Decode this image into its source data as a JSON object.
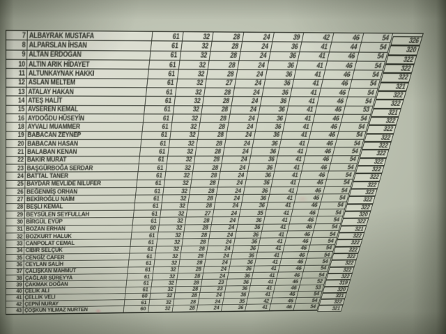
{
  "table": {
    "rows": [
      {
        "no": "7",
        "name": "ALBAYRAK MUSTAFA",
        "scores": [
          "61",
          "32",
          "28",
          "24",
          "39",
          "42",
          "46",
          "54"
        ],
        "total": "326"
      },
      {
        "no": "8",
        "name": "ALPARSLAN İHSAN",
        "scores": [
          "61",
          "32",
          "28",
          "24",
          "36",
          "41",
          "44",
          "54"
        ],
        "total": "320"
      },
      {
        "no": "9",
        "name": "ALTAN ERDOĞAN",
        "scores": [
          "61",
          "32",
          "28",
          "24",
          "36",
          "41",
          "46",
          "54"
        ],
        "total": "322"
      },
      {
        "no": "10",
        "name": "ALTIN ARIK HİDAYET",
        "scores": [
          "61",
          "32",
          "28",
          "24",
          "36",
          "41",
          "46",
          "54"
        ],
        "total": "322"
      },
      {
        "no": "11",
        "name": "ALTUNKAYNAK HAKKI",
        "scores": [
          "61",
          "32",
          "28",
          "24",
          "36",
          "41",
          "46",
          "54"
        ],
        "total": "322"
      },
      {
        "no": "12",
        "name": "ASLAN MELTEM",
        "scores": [
          "61",
          "32",
          "27",
          "24",
          "36",
          "41",
          "46",
          "54"
        ],
        "total": "321"
      },
      {
        "no": "13",
        "name": "ATALAY HAKAN",
        "scores": [
          "61",
          "32",
          "28",
          "24",
          "36",
          "41",
          "46",
          "54"
        ],
        "total": "322"
      },
      {
        "no": "14",
        "name": "ATEŞ HALİT",
        "scores": [
          "61",
          "32",
          "28",
          "24",
          "36",
          "41",
          "46",
          "54"
        ],
        "total": "322"
      },
      {
        "no": "15",
        "name": "AVSEREN KEMAL",
        "scores": [
          "61",
          "32",
          "28",
          "24",
          "36",
          "41",
          "46",
          "53"
        ],
        "total": "321"
      },
      {
        "no": "16",
        "name": "AYDOĞDU HÜSEYİN",
        "scores": [
          "61",
          "32",
          "28",
          "24",
          "36",
          "41",
          "46",
          "54"
        ],
        "total": "322"
      },
      {
        "no": "18",
        "name": "AYVALI MUAMMER",
        "scores": [
          "61",
          "32",
          "28",
          "24",
          "36",
          "41",
          "46",
          "54"
        ],
        "total": "322"
      },
      {
        "no": "19",
        "name": "BABACAN ZEYNEP",
        "scores": [
          "61",
          "32",
          "28",
          "24",
          "36",
          "41",
          "46",
          "54"
        ],
        "total": "322"
      },
      {
        "no": "20",
        "name": "BABACAN HASAN",
        "scores": [
          "61",
          "32",
          "28",
          "24",
          "36",
          "41",
          "46",
          "54"
        ],
        "total": "322"
      },
      {
        "no": "21",
        "name": "BALABAN KENAN",
        "scores": [
          "61",
          "32",
          "28",
          "24",
          "36",
          "41",
          "46",
          "54"
        ],
        "total": "322"
      },
      {
        "no": "22",
        "name": "BAKIR MURAT",
        "scores": [
          "61",
          "32",
          "28",
          "24",
          "36",
          "41",
          "46",
          "54"
        ],
        "total": "322"
      },
      {
        "no": "23",
        "name": "BAŞGÜRBOĞA SERDAR",
        "scores": [
          "61",
          "32",
          "28",
          "24",
          "36",
          "41",
          "46",
          "54"
        ],
        "total": "322"
      },
      {
        "no": "24",
        "name": "BATTAL TANER",
        "scores": [
          "61",
          "32",
          "28",
          "24",
          "36",
          "41",
          "46",
          "54"
        ],
        "total": "322"
      },
      {
        "no": "25",
        "name": "BAYDAR MEVLİDE NİLÜFER",
        "scores": [
          "61",
          "32",
          "28",
          "24",
          "36",
          "41",
          "46",
          "54"
        ],
        "total": "322"
      },
      {
        "no": "26",
        "name": "BEĞENMİŞ ORHAN",
        "scores": [
          "61",
          "32",
          "28",
          "24",
          "36",
          "41",
          "46",
          "54"
        ],
        "total": "322"
      },
      {
        "no": "27",
        "name": "BEKİROĞLU NAİM",
        "scores": [
          "61",
          "32",
          "28",
          "24",
          "36",
          "41",
          "46",
          "54"
        ],
        "total": "322"
      },
      {
        "no": "28",
        "name": "BEŞLİ KEMAL",
        "scores": [
          "61",
          "32",
          "28",
          "24",
          "36",
          "41",
          "46",
          "54"
        ],
        "total": "322"
      },
      {
        "no": "29",
        "name": "BEYSÜLEN SEYFULLAH",
        "scores": [
          "61",
          "32",
          "27",
          "24",
          "35",
          "41",
          "46",
          "54"
        ],
        "total": "320"
      },
      {
        "no": "30",
        "name": "BİRGÜL EYÜP",
        "scores": [
          "61",
          "32",
          "28",
          "24",
          "36",
          "41",
          "46",
          "54"
        ],
        "total": "322"
      },
      {
        "no": "31",
        "name": "BOZAN ERHAN",
        "scores": [
          "60",
          "32",
          "28",
          "24",
          "36",
          "41",
          "46",
          "54"
        ],
        "total": "321"
      },
      {
        "no": "32",
        "name": "BOZKURT HALUK",
        "scores": [
          "61",
          "32",
          "28",
          "24",
          "36",
          "41",
          "46",
          "54"
        ],
        "total": "322"
      },
      {
        "no": "33",
        "name": "CANPOLAT CEMAL",
        "scores": [
          "61",
          "32",
          "28",
          "24",
          "36",
          "41",
          "46",
          "54"
        ],
        "total": "322"
      },
      {
        "no": "34",
        "name": "CİBİR SELÇUK",
        "scores": [
          "61",
          "32",
          "28",
          "24",
          "36",
          "41",
          "46",
          "54"
        ],
        "total": "322"
      },
      {
        "no": "35",
        "name": "CENGİZ CAFER",
        "scores": [
          "61",
          "32",
          "28",
          "24",
          "36",
          "41",
          "46",
          "54"
        ],
        "total": "322"
      },
      {
        "no": "36",
        "name": "CEYLAN SALİH",
        "scores": [
          "61",
          "32",
          "28",
          "24",
          "36",
          "41",
          "46",
          "54"
        ],
        "total": "322"
      },
      {
        "no": "37",
        "name": "ÇALIŞKAN MAHMUT",
        "scores": [
          "61",
          "32",
          "28",
          "24",
          "36",
          "41",
          "46",
          "54"
        ],
        "total": "322"
      },
      {
        "no": "38",
        "name": "ÇAĞLAR SÜREYYA",
        "scores": [
          "61",
          "32",
          "28",
          "24",
          "36",
          "41",
          "46",
          "54"
        ],
        "total": "322"
      },
      {
        "no": "39",
        "name": "ÇAKMAK DOĞAN",
        "scores": [
          "61",
          "32",
          "28",
          "23",
          "36",
          "41",
          "46",
          "52"
        ],
        "total": "319"
      },
      {
        "no": "40",
        "name": "ÇELİK ALİ",
        "scores": [
          "61",
          "32",
          "28",
          "23",
          "36",
          "41",
          "46",
          "53"
        ],
        "total": "320"
      },
      {
        "no": "41",
        "name": "ÇELLİK VELİ",
        "scores": [
          "60",
          "32",
          "28",
          "24",
          "36",
          "41",
          "46",
          "54"
        ],
        "total": "321"
      },
      {
        "no": "42",
        "name": "ÇEPNİ NURAY",
        "scores": [
          "61",
          "32",
          "28",
          "24",
          "35",
          "42",
          "46",
          "54"
        ],
        "total": "322"
      },
      {
        "no": "43",
        "name": "ÇOŞKUN YILMAZ NURTEN",
        "scores": [
          "60",
          "32",
          "28",
          "24",
          "36",
          "41",
          "46",
          "54"
        ],
        "total": "321"
      }
    ]
  },
  "colors": {
    "paper": "#aeb4a3",
    "cell_light": "#d6d9ca",
    "ink": "#2c2f27",
    "grid_line": "#343830"
  }
}
